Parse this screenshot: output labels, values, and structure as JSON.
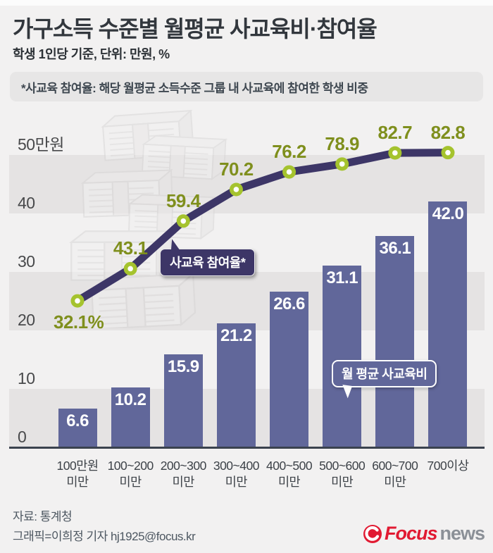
{
  "page": {
    "title": "가구소득 수준별 월평균 사교육비·참여율",
    "subtitle": "학생 1인당 기준, 단위: 만원, %",
    "note": "*사교육 참여율: 해당 월평균 소득수준 그룹 내 사교육에 참여한 학생 비중"
  },
  "chart_data": {
    "type": "combo",
    "categories": [
      [
        "100만원",
        "미만"
      ],
      [
        "100~200",
        "미만"
      ],
      [
        "200~300",
        "미만"
      ],
      [
        "300~400",
        "미만"
      ],
      [
        "400~500",
        "미만"
      ],
      [
        "500~600",
        "미만"
      ],
      [
        "600~700",
        "미만"
      ],
      [
        "700이상",
        ""
      ]
    ],
    "series": [
      {
        "name": "월 평균 사교육비",
        "type": "bar",
        "unit": "만원",
        "values": [
          6.6,
          10.2,
          15.9,
          21.2,
          26.6,
          31.1,
          36.1,
          42.0
        ],
        "labels": [
          "6.6",
          "10.2",
          "15.9",
          "21.2",
          "26.6",
          "31.1",
          "36.1",
          "42.0"
        ],
        "color": "#61679a"
      },
      {
        "name": "사교육 참여율",
        "type": "line",
        "unit": "%",
        "values": [
          32.1,
          43.1,
          59.4,
          70.2,
          76.2,
          78.9,
          82.7,
          82.8
        ],
        "labels": [
          "32.1%",
          "43.1",
          "59.4",
          "70.2",
          "76.2",
          "78.9",
          "82.7",
          "82.8"
        ],
        "color": "#3d3667",
        "marker_color": "#a5c32e",
        "label_color": "#7f8f1d"
      }
    ],
    "y_axis": {
      "ticks": [
        "50만원",
        "40",
        "30",
        "20",
        "10",
        "0"
      ],
      "tick_values": [
        50,
        40,
        30,
        20,
        10,
        0
      ],
      "range": [
        0,
        55
      ],
      "grid": "alternating-gray-bands"
    },
    "legend_position": "in-chart-bubbles",
    "annotations": [
      {
        "text": "사교육 참여율*",
        "style": "dark-bubble"
      },
      {
        "text": "월 평균 사교육비",
        "style": "blue-bubble"
      }
    ]
  },
  "footer": {
    "source": "자료: 통계청",
    "credit": "그래픽=이희정 기자 hj1925@focus.kr",
    "logo": {
      "brand": "Focus",
      "suffix": "news"
    }
  }
}
